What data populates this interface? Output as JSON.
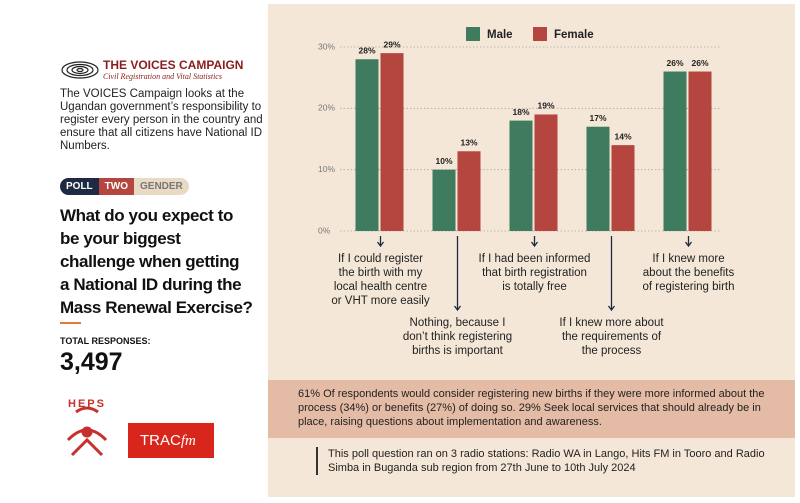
{
  "sidebar": {
    "campaign_name": "THE VOICES CAMPAIGN",
    "campaign_subtitle": "Civil Registration and Vital Statistics",
    "description": "The VOICES Campaign looks at the Ugandan government’s responsibility to register every person in the country and ensure that all citizens have National ID Numbers.",
    "poll_tags": [
      "POLL",
      "TWO",
      "GENDER"
    ],
    "question": "What do you expect to\nbe your biggest\nchallenge when getting\na National ID during the\nMass Renewal Exercise?",
    "total_label": "TOTAL RESPONSES:",
    "total_value": "3,497",
    "logo_heps": "HEPS",
    "logo_trac": "TRAC",
    "logo_fm": "fm"
  },
  "chart_data": {
    "type": "bar",
    "categories": [
      "If I could register\nthe birth with my\nlocal health centre\nor VHT more easily",
      "Nothing, because I\ndon’t think registering\nbirths is important",
      "If I had been informed\nthat birth registration\nis totally free",
      "If I knew more about\nthe requirements of\nthe process",
      "If I knew more\nabout the benefits\nof registering birth"
    ],
    "series": [
      {
        "name": "Male",
        "color": "#3e7b5f",
        "values": [
          28,
          10,
          18,
          17,
          26
        ],
        "value_labels": [
          "28%",
          "10%",
          "18%",
          "17%",
          "26%"
        ]
      },
      {
        "name": "Female",
        "color": "#b4463f",
        "values": [
          29,
          13,
          19,
          14,
          26
        ],
        "value_labels": [
          "29%",
          "13%",
          "19%",
          "14%",
          "26%"
        ]
      }
    ],
    "ylim": [
      0,
      30
    ],
    "yticks": [
      {
        "value": 0,
        "label": "0%"
      },
      {
        "value": 10,
        "label": "10%"
      },
      {
        "value": 20,
        "label": "20%"
      },
      {
        "value": 30,
        "label": "30%"
      }
    ],
    "grid": true,
    "legend": "top"
  },
  "summary": "61% Of respondents would consider registering new births if they were more informed about the process (34%) or benefits (27%) of doing so. 29% Seek local services that should already be in place, raising questions about implementation and awareness.",
  "note": "This poll question ran on 3 radio stations: Radio WA in Lango, Hits FM in Tooro and Radio Simba in Buganda sub region from 27th June to 10th July 2024"
}
